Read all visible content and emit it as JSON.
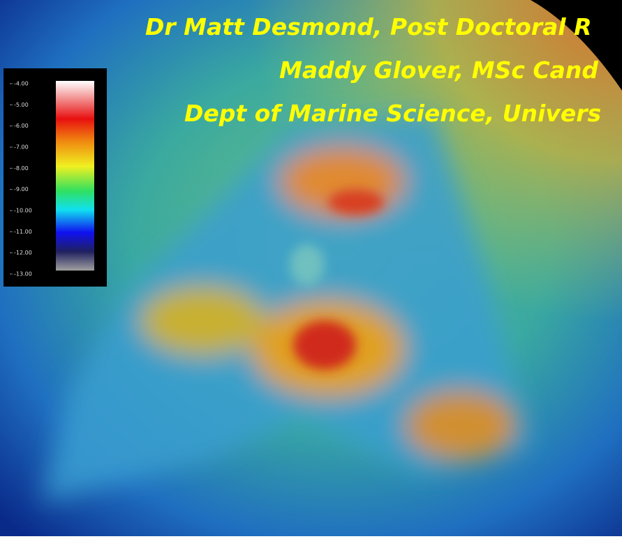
{
  "header": {
    "lines": [
      "Dr Matt Desmond, Post Doctoral R",
      "Maddy Glover, MSc Cand",
      "Dept of Marine Science, Univers"
    ]
  },
  "colorbar": {
    "ticks": [
      {
        "value": -4,
        "label": "-4.00"
      },
      {
        "value": -5,
        "label": "-5.00"
      },
      {
        "value": -6,
        "label": "-6.00"
      },
      {
        "value": -7,
        "label": "-7.00"
      },
      {
        "value": -8,
        "label": "-8.00"
      },
      {
        "value": -9,
        "label": "-9.00"
      },
      {
        "value": -10,
        "label": "-10.00"
      },
      {
        "value": -11,
        "label": "-11.00"
      },
      {
        "value": -12,
        "label": "-12.00"
      },
      {
        "value": -13,
        "label": "-13.00"
      }
    ],
    "lim": [
      -4,
      -13
    ]
  }
}
